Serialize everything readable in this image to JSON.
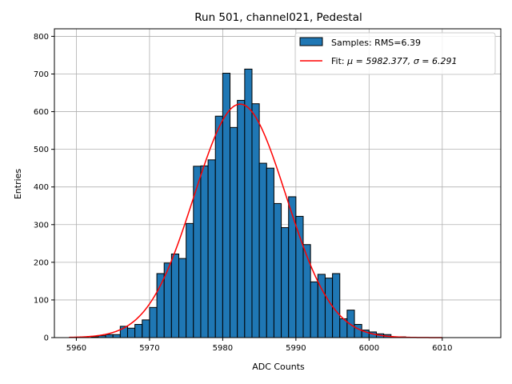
{
  "chart_data": {
    "type": "histogram",
    "title": "Run 501, channel021, Pedestal",
    "xlabel": "ADC Counts",
    "ylabel": "Entries",
    "xlim": [
      5957,
      6018
    ],
    "ylim": [
      0,
      820
    ],
    "xticks": [
      5960,
      5970,
      5980,
      5990,
      6000,
      6010
    ],
    "yticks": [
      0,
      100,
      200,
      300,
      400,
      500,
      600,
      700,
      800
    ],
    "grid": true,
    "legend_position": "top-right",
    "bin_start": 5960,
    "bin_width": 1,
    "bin_values": [
      0,
      0,
      2,
      5,
      8,
      8,
      30,
      25,
      35,
      47,
      80,
      170,
      198,
      222,
      210,
      303,
      455,
      456,
      472,
      588,
      702,
      558,
      630,
      713,
      621,
      463,
      450,
      356,
      292,
      374,
      322,
      247,
      148,
      168,
      158,
      170,
      50,
      73,
      35,
      20,
      15,
      10,
      8,
      2,
      2,
      0,
      0,
      0,
      0,
      0
    ],
    "fit": {
      "mu": 5982.377,
      "sigma": 6.291,
      "amplitude": 620,
      "x_range": [
        5959,
        6010
      ]
    },
    "series": [
      {
        "name": "Samples: RMS=6.39",
        "kind": "bars",
        "color": "#1f77b4",
        "edge_color": "#000000"
      },
      {
        "name_prefix": "Fit: ",
        "name_mu_part": "μ = 5982.377, ",
        "name_sigma_part": "σ = 6.291",
        "kind": "line",
        "color": "#ff0000"
      }
    ]
  }
}
